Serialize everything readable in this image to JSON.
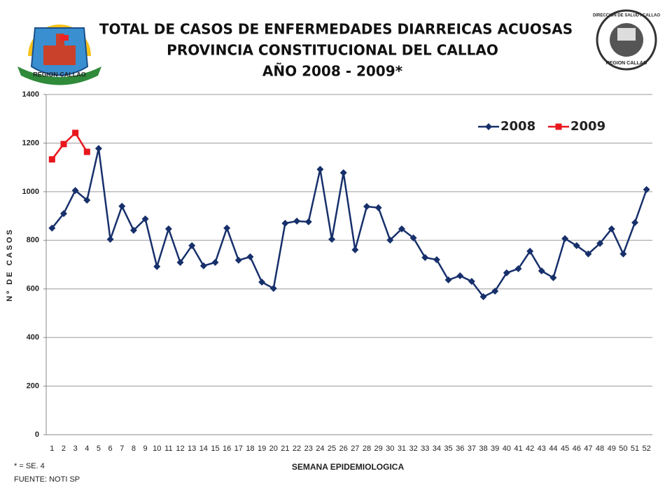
{
  "chart_data": {
    "type": "line",
    "title": [
      "TOTAL DE CASOS DE ENFERMEDADES  DIARREICAS  ACUOSAS",
      "PROVINCIA  CONSTITUCIONAL  DEL  CALLAO",
      "AÑO 2008 - 2009*"
    ],
    "xlabel": "SEMANA EPIDEMIOLOGICA",
    "ylabel": "Nº DE CASOS",
    "note": "* = SE. 4",
    "source": "FUENTE: NOTI SP",
    "logos": [
      "REGION CALLAO",
      "DIRECCION DE SALUD I CALLAO",
      "REGION CALLAO"
    ],
    "categories": [
      "1",
      "2",
      "3",
      "4",
      "5",
      "6",
      "7",
      "8",
      "9",
      "10",
      "11",
      "12",
      "13",
      "14",
      "15",
      "16",
      "17",
      "18",
      "19",
      "20",
      "21",
      "22",
      "23",
      "24",
      "25",
      "26",
      "27",
      "28",
      "29",
      "30",
      "31",
      "32",
      "33",
      "34",
      "35",
      "36",
      "37",
      "38",
      "39",
      "40",
      "41",
      "42",
      "43",
      "44",
      "45",
      "46",
      "47",
      "48",
      "49",
      "50",
      "51",
      "52"
    ],
    "series": [
      {
        "name": "2008",
        "color": "#17306b",
        "marker": "diamond",
        "values": [
          850,
          910,
          1005,
          965,
          1178,
          804,
          940,
          841,
          888,
          692,
          847,
          709,
          778,
          695,
          709,
          850,
          718,
          732,
          628,
          602,
          870,
          879,
          876,
          1092,
          804,
          1078,
          761,
          939,
          934,
          801,
          847,
          810,
          729,
          720,
          637,
          654,
          631,
          568,
          591,
          666,
          683,
          755,
          674,
          646,
          807,
          778,
          744,
          787,
          847,
          744,
          873,
          1009
        ]
      },
      {
        "name": "2009",
        "color": "#e8171d",
        "marker": "square",
        "values": [
          1133,
          1196,
          1242,
          1164,
          null,
          null,
          null,
          null,
          null,
          null,
          null,
          null,
          null,
          null,
          null,
          null,
          null,
          null,
          null,
          null,
          null,
          null,
          null,
          null,
          null,
          null,
          null,
          null,
          null,
          null,
          null,
          null,
          null,
          null,
          null,
          null,
          null,
          null,
          null,
          null,
          null,
          null,
          null,
          null,
          null,
          null,
          null,
          null,
          null,
          null,
          null,
          null
        ]
      }
    ],
    "ylim": [
      0,
      1400
    ],
    "yticks": [
      0,
      200,
      400,
      600,
      800,
      1000,
      1200,
      1400
    ],
    "grid": true,
    "legend": "upper right"
  }
}
